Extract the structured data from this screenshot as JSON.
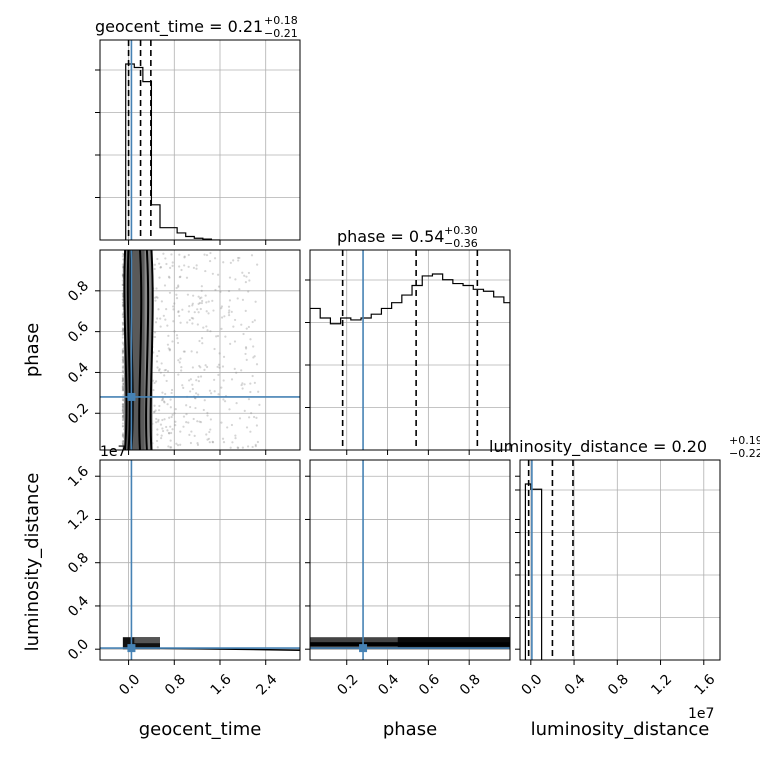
{
  "chart_data": {
    "type": "corner",
    "parameters": [
      "geocent_time",
      "phase",
      "luminosity_distance"
    ],
    "axis_labels": {
      "x": [
        "geocent_time",
        "phase",
        "luminosity_distance"
      ],
      "y": [
        "phase",
        "luminosity_distance"
      ]
    },
    "titles": [
      {
        "param": "geocent_time",
        "text": "geocent_time = 0.21",
        "plus": "+0.18",
        "minus": "−0.21",
        "median": 0.21,
        "err_plus": 0.18,
        "err_minus": 0.21
      },
      {
        "param": "phase",
        "text": "phase = 0.54",
        "plus": "+0.30",
        "minus": "−0.36",
        "median": 0.54,
        "err_plus": 0.3,
        "err_minus": 0.36
      },
      {
        "param": "luminosity_distance",
        "text": "luminosity_distance = 0.20",
        "plus": "+0.19",
        "minus": "−0.22",
        "median": 0.2,
        "err_plus": 0.19,
        "err_minus": 0.22
      }
    ],
    "ranges": {
      "geocent_time": [
        -0.5,
        3.0
      ],
      "phase": [
        0.02,
        1.0
      ],
      "luminosity_distance": [
        -0.1,
        1.75
      ]
    },
    "offset_text": {
      "luminosity_distance_y": "1e7",
      "luminosity_distance_x": "1e7"
    },
    "ticks": {
      "geocent_time": [
        "0.0",
        "0.8",
        "1.6",
        "2.4"
      ],
      "geocent_time_values": [
        0.0,
        0.8,
        1.6,
        2.4
      ],
      "phase_y": [
        "0.2",
        "0.4",
        "0.6",
        "0.8"
      ],
      "phase_x": [
        "0.2",
        "0.4",
        "0.6",
        "0.8"
      ],
      "phase_values": [
        0.2,
        0.4,
        0.6,
        0.8
      ],
      "luminosity_distance": [
        "0.0",
        "0.4",
        "0.8",
        "1.2",
        "1.6"
      ],
      "luminosity_distance_values": [
        0.0,
        0.4,
        0.8,
        1.2,
        1.6
      ]
    },
    "truths": {
      "geocent_time": 0.05,
      "phase": 0.28,
      "luminosity_distance": 0.01
    },
    "quantiles": {
      "geocent_time": [
        0.0,
        0.21,
        0.39
      ],
      "phase": [
        0.18,
        0.54,
        0.84
      ],
      "luminosity_distance": [
        -0.02,
        0.2,
        0.39
      ]
    },
    "hist_geocent_time": {
      "edges": [
        -0.05,
        0.1,
        0.25,
        0.4,
        0.55,
        0.7,
        0.85,
        1.0,
        1.15,
        1.3,
        1.45,
        1.6
      ],
      "counts": [
        1.0,
        0.98,
        0.9,
        0.2,
        0.07,
        0.07,
        0.04,
        0.02,
        0.01,
        0.005,
        0.0
      ]
    },
    "hist_phase": {
      "edges": [
        0.02,
        0.07,
        0.12,
        0.17,
        0.22,
        0.27,
        0.32,
        0.37,
        0.42,
        0.47,
        0.52,
        0.57,
        0.62,
        0.67,
        0.72,
        0.77,
        0.82,
        0.87,
        0.92,
        0.97,
        1.0
      ],
      "counts": [
        0.74,
        0.69,
        0.66,
        0.69,
        0.68,
        0.69,
        0.71,
        0.74,
        0.77,
        0.81,
        0.86,
        0.91,
        0.92,
        0.89,
        0.87,
        0.86,
        0.84,
        0.83,
        0.8,
        0.77
      ]
    },
    "hist_luminosity_distance": {
      "edges": [
        -0.05,
        0.0,
        0.1
      ],
      "counts": [
        1.0,
        0.97
      ]
    }
  }
}
